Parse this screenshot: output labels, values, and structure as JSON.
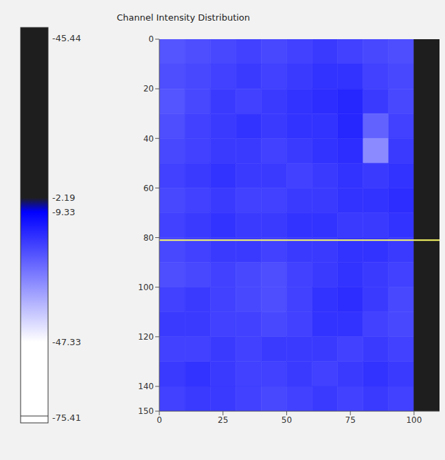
{
  "chart_data": {
    "type": "heatmap",
    "title": "Channel Intensity Distribution",
    "xlim": [
      0,
      110
    ],
    "xticks": [
      0,
      25,
      50,
      75,
      100
    ],
    "ylim": [
      0,
      150
    ],
    "yticks": [
      0,
      20,
      40,
      60,
      80,
      100,
      120,
      140,
      150
    ],
    "hline": {
      "y": 81,
      "color": "#ffff66"
    },
    "masked_region": {
      "x": [
        100,
        110
      ],
      "y": [
        0,
        150
      ],
      "color": "#1e1e1e"
    },
    "colorbar": {
      "stops": [
        {
          "value": -45.44,
          "color": "#1e1e1e"
        },
        {
          "value": -2.19,
          "color": "#1e1e1e"
        },
        {
          "value": -9.33,
          "color": "#0000ff"
        },
        {
          "value": -47.33,
          "color": "#ffffff"
        },
        {
          "value": -75.41,
          "color": "#ffffff"
        }
      ]
    },
    "cells": {
      "x_edges": [
        0,
        10,
        20,
        30,
        40,
        50,
        60,
        70,
        80,
        90,
        100
      ],
      "y_edges": [
        0,
        10,
        20,
        30,
        40,
        50,
        60,
        70,
        80,
        90,
        100,
        110,
        120,
        130,
        140,
        150
      ],
      "values": [
        [
          -22,
          -21,
          -20,
          -19,
          -20,
          -19,
          -18,
          -19,
          -20,
          -21
        ],
        [
          -21,
          -20,
          -19,
          -18,
          -19,
          -18,
          -17,
          -17,
          -19,
          -20
        ],
        [
          -22,
          -20,
          -18,
          -19,
          -18,
          -17,
          -16,
          -15,
          -18,
          -20
        ],
        [
          -21,
          -19,
          -18,
          -17,
          -18,
          -17,
          -17,
          -15,
          -24,
          -19
        ],
        [
          -20,
          -19,
          -18,
          -18,
          -19,
          -18,
          -17,
          -16,
          -30,
          -18
        ],
        [
          -19,
          -18,
          -17,
          -18,
          -18,
          -19,
          -18,
          -17,
          -18,
          -17
        ],
        [
          -20,
          -19,
          -18,
          -19,
          -19,
          -18,
          -18,
          -17,
          -17,
          -16
        ],
        [
          -19,
          -18,
          -17,
          -18,
          -18,
          -17,
          -17,
          -18,
          -18,
          -17
        ],
        [
          -20,
          -19,
          -18,
          -18,
          -19,
          -18,
          -18,
          -17,
          -17,
          -18
        ],
        [
          -21,
          -20,
          -19,
          -20,
          -21,
          -19,
          -18,
          -17,
          -18,
          -19
        ],
        [
          -19,
          -18,
          -19,
          -20,
          -21,
          -19,
          -17,
          -16,
          -18,
          -20
        ],
        [
          -18,
          -18,
          -19,
          -19,
          -20,
          -19,
          -17,
          -17,
          -19,
          -20
        ],
        [
          -19,
          -19,
          -18,
          -19,
          -18,
          -18,
          -18,
          -19,
          -18,
          -19
        ],
        [
          -18,
          -17,
          -18,
          -19,
          -19,
          -18,
          -19,
          -18,
          -17,
          -18
        ],
        [
          -19,
          -18,
          -18,
          -19,
          -20,
          -19,
          -18,
          -19,
          -18,
          -19
        ]
      ]
    }
  }
}
